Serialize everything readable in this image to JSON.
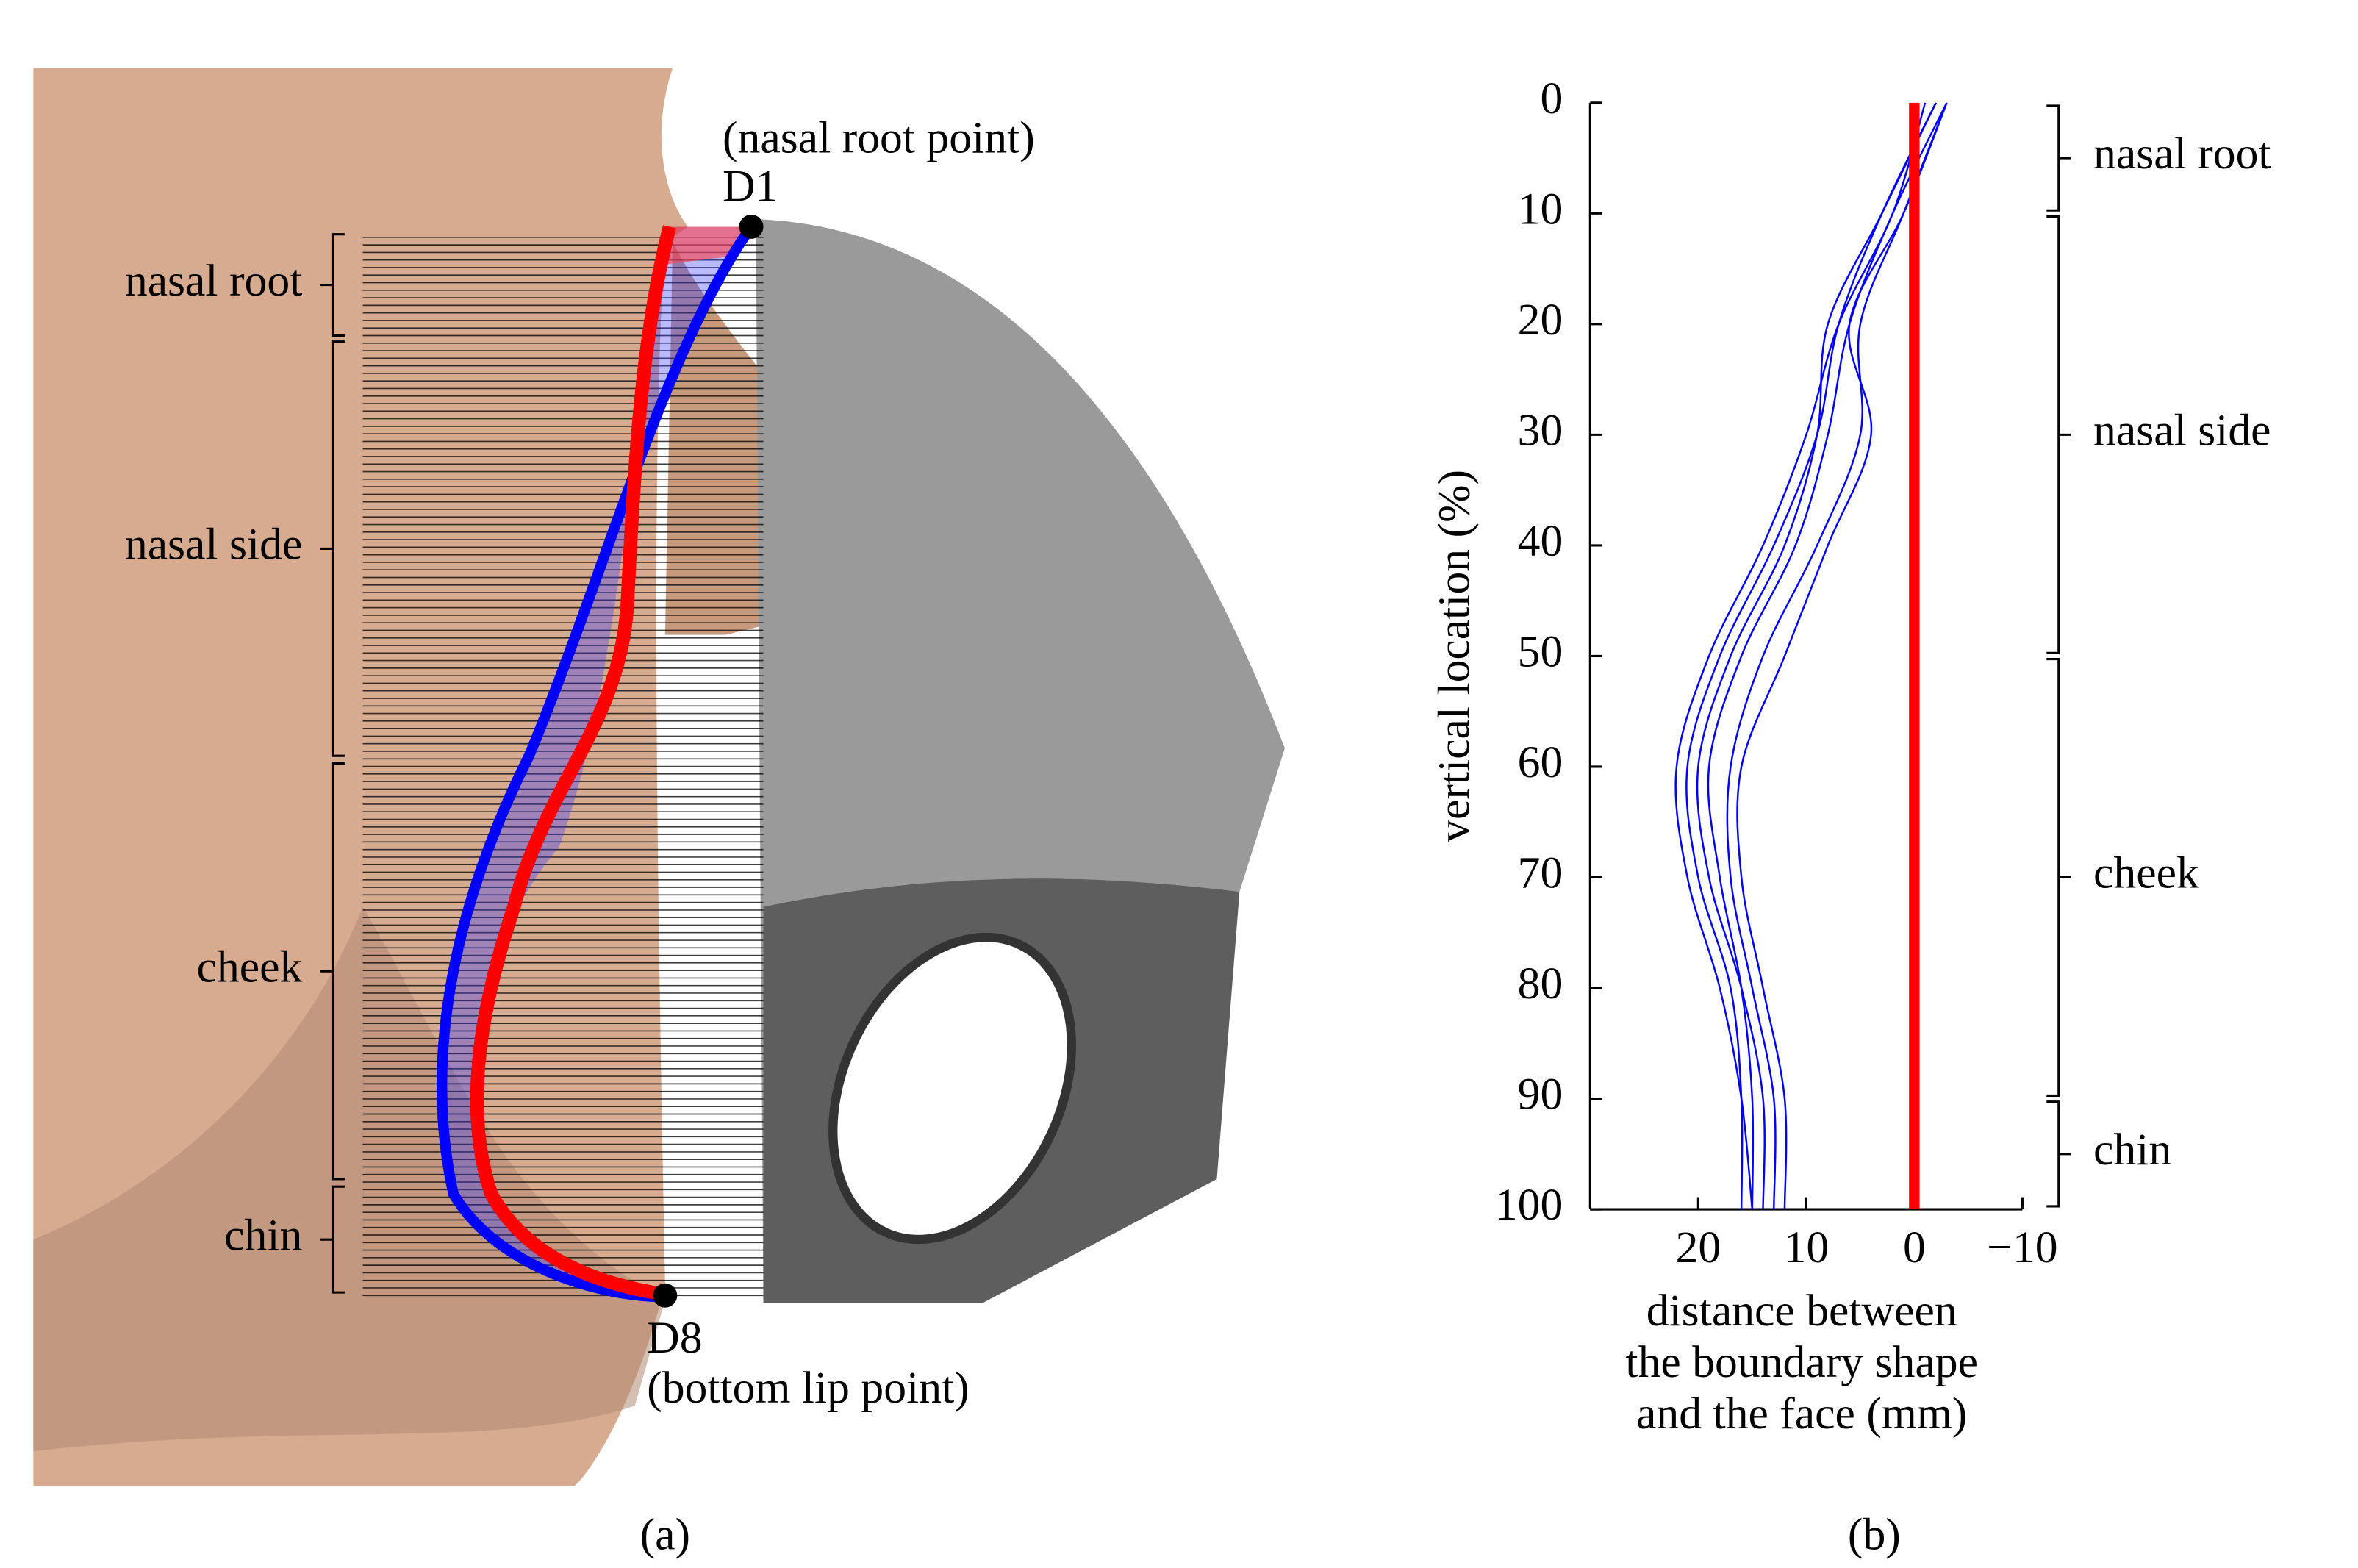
{
  "figure_a": {
    "nasal_root_point": "(nasal root point)",
    "d1": "D1",
    "d8": "D8",
    "bottom_lip_point": "(bottom lip point)",
    "regions": [
      "nasal root",
      "nasal side",
      "cheek",
      "chin"
    ],
    "caption": "(a)"
  },
  "chart_data": {
    "type": "line",
    "ylabel": "vertical location (%)",
    "xlabel": [
      "distance between",
      "the boundary shape",
      "and the face (mm)"
    ],
    "y": [
      0,
      10,
      20,
      30,
      40,
      50,
      60,
      70,
      80,
      90,
      100
    ],
    "ylim": [
      0,
      100
    ],
    "yticks": [
      0,
      10,
      20,
      30,
      40,
      50,
      60,
      70,
      80,
      90,
      100
    ],
    "y_reversed": true,
    "xlim": [
      30,
      -10
    ],
    "xticks": [
      20,
      10,
      0,
      {
        "value": -10,
        "label": "−10"
      }
    ],
    "series": [
      {
        "color": "#0000ff",
        "values": [
          -3,
          2,
          6,
          8,
          11,
          16,
          19,
          18,
          16,
          15,
          15
        ]
      },
      {
        "color": "#0000ff",
        "values": [
          -2,
          3,
          7,
          9,
          13,
          18,
          21,
          20,
          17,
          16,
          16
        ]
      },
      {
        "color": "#0000ff",
        "values": [
          -3,
          1,
          5,
          5,
          9,
          14,
          17,
          17,
          15,
          13,
          13
        ]
      },
      {
        "color": "#0000ff",
        "values": [
          -1,
          2,
          7,
          10,
          14,
          19,
          22,
          21,
          18,
          16,
          15
        ]
      },
      {
        "color": "#0000ff",
        "values": [
          -3,
          1,
          6,
          4,
          8,
          12,
          16,
          16,
          14,
          12,
          12
        ]
      },
      {
        "color": "#0000ff",
        "values": [
          -2,
          3,
          8,
          9,
          12,
          17,
          20,
          19,
          16,
          14,
          14
        ]
      },
      {
        "color": "#ff0000",
        "values": [
          0,
          0,
          0,
          0,
          0,
          0,
          0,
          0,
          0,
          0,
          0
        ]
      }
    ],
    "regions": [
      {
        "label": "nasal root",
        "start": 0,
        "end": 10
      },
      {
        "label": "nasal side",
        "start": 10,
        "end": 50
      },
      {
        "label": "cheek",
        "start": 50,
        "end": 90
      },
      {
        "label": "chin",
        "start": 90,
        "end": 100
      }
    ],
    "caption": "(b)"
  }
}
